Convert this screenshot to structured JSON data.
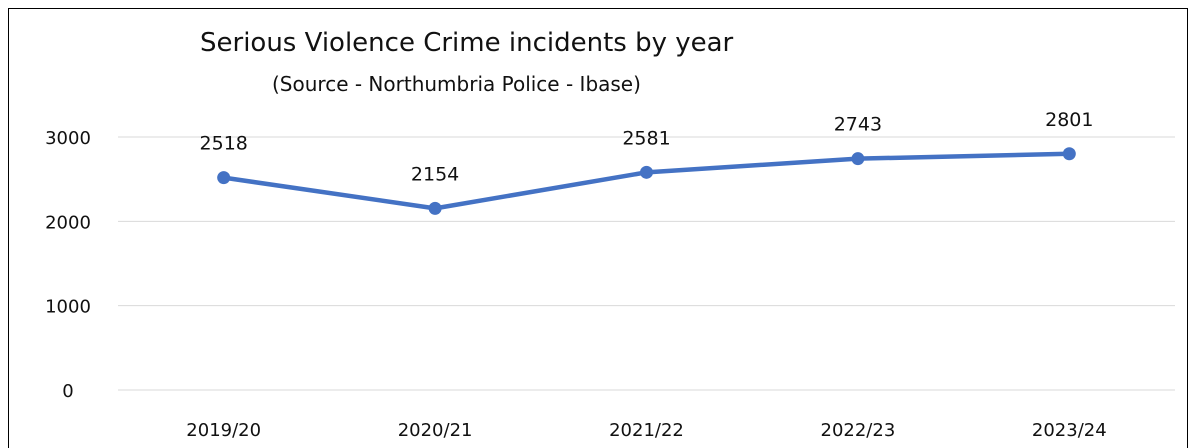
{
  "chart_data": {
    "type": "line",
    "title": "Serious Violence Crime incidents by year",
    "subtitle": "(Source - Northumbria Police - Ibase)",
    "categories": [
      "2019/20",
      "2020/21",
      "2021/22",
      "2022/23",
      "2023/24"
    ],
    "series": [
      {
        "values": [
          2518,
          2154,
          2581,
          2743,
          2801
        ],
        "color": "#4472C4"
      }
    ],
    "yticks": [
      0,
      1000,
      2000,
      3000
    ],
    "ylim": [
      0,
      3000
    ],
    "grid": true,
    "legend": "none",
    "data_labels": true,
    "gridline_color": "#d9d9d9"
  }
}
